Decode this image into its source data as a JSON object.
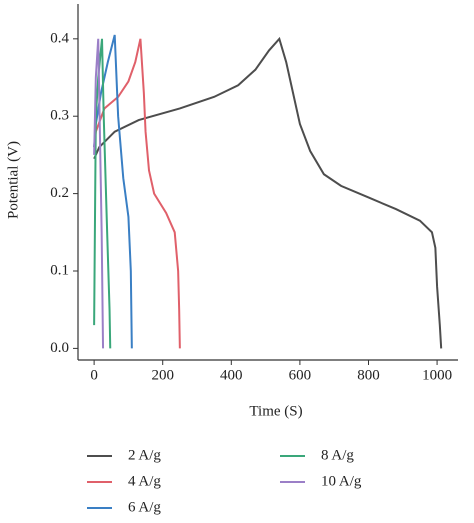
{
  "chart_data": {
    "type": "line",
    "xlabel": "Time (S)",
    "ylabel": "Potential (V)",
    "xlim": [
      -47,
      1061
    ],
    "ylim": [
      -0.015,
      0.445
    ],
    "xticks": [
      0,
      200,
      400,
      600,
      800,
      1000
    ],
    "yticks": [
      {
        "value": 0,
        "label": "0.0"
      },
      0.1,
      0.2,
      0.3,
      0.4
    ],
    "grid": false,
    "series": [
      {
        "name": "2 A/g",
        "color": "#4d4d4d",
        "x": [
          0,
          15,
          60,
          130,
          250,
          350,
          420,
          470,
          510,
          540,
          560,
          580,
          600,
          630,
          670,
          720,
          800,
          880,
          950,
          985,
          995,
          1000,
          1008,
          1012
        ],
        "values": [
          0.245,
          0.26,
          0.28,
          0.295,
          0.31,
          0.325,
          0.34,
          0.36,
          0.385,
          0.4,
          0.37,
          0.33,
          0.29,
          0.255,
          0.225,
          0.21,
          0.195,
          0.18,
          0.165,
          0.15,
          0.13,
          0.08,
          0.03,
          0
        ]
      },
      {
        "name": "4 A/g",
        "color": "#e0606a",
        "x": [
          0,
          5,
          30,
          70,
          100,
          120,
          135,
          145,
          150,
          160,
          175,
          210,
          235,
          245,
          248,
          250
        ],
        "values": [
          0.26,
          0.28,
          0.31,
          0.325,
          0.345,
          0.37,
          0.4,
          0.33,
          0.28,
          0.23,
          0.2,
          0.175,
          0.15,
          0.1,
          0.05,
          0
        ]
      },
      {
        "name": "6 A/g",
        "color": "#3a7fc4",
        "x": [
          0,
          5,
          20,
          40,
          60,
          70,
          85,
          100,
          107,
          110
        ],
        "values": [
          0.26,
          0.29,
          0.33,
          0.37,
          0.405,
          0.3,
          0.22,
          0.17,
          0.1,
          0
        ]
      },
      {
        "name": "8 A/g",
        "color": "#3aa77a",
        "x": [
          0,
          5,
          12,
          23,
          28,
          38,
          45,
          47
        ],
        "values": [
          0.03,
          0.3,
          0.35,
          0.4,
          0.3,
          0.15,
          0.05,
          0
        ]
      },
      {
        "name": "10 A/g",
        "color": "#9b7fc7",
        "x": [
          0,
          5,
          12,
          16,
          22,
          26
        ],
        "values": [
          0.25,
          0.35,
          0.4,
          0.3,
          0.15,
          0
        ]
      }
    ]
  }
}
